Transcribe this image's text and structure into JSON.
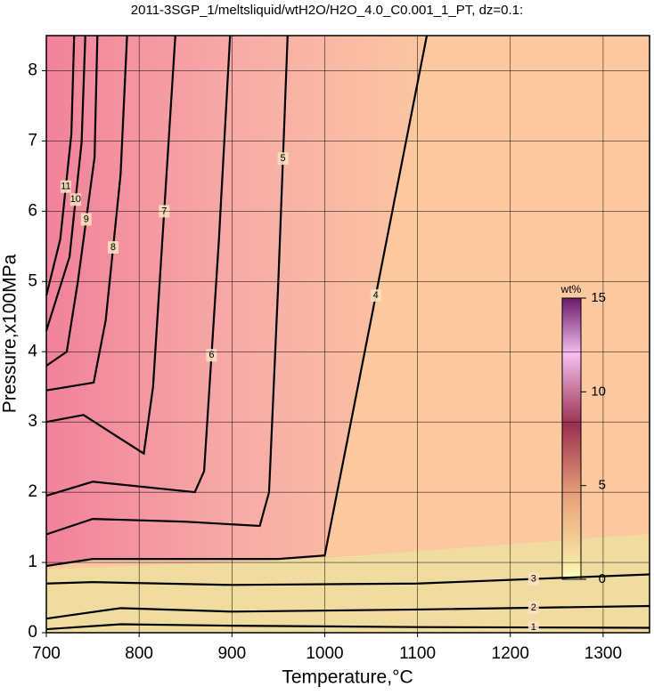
{
  "chart_data": {
    "type": "contour",
    "title": "2011-3SGP_1/meltsliquid/wtH2O/H2O_4.0_C0.001_1_PT, dz=0.1:",
    "x_label": "Temperature,°C",
    "y_label": "Pressure,x100MPa",
    "xlim": [
      700,
      1350
    ],
    "xticks": [
      700,
      800,
      900,
      1000,
      1100,
      1200,
      1300
    ],
    "ylim": [
      0,
      8.5
    ],
    "yticks": [
      0,
      1,
      2,
      3,
      4,
      5,
      6,
      7,
      8
    ],
    "grid": true,
    "colorbar": {
      "label": "wt%",
      "lim": [
        0,
        15
      ],
      "ticks": [
        0,
        5,
        10,
        15
      ]
    },
    "contours": [
      {
        "level": 1,
        "x": [
          700,
          780,
          900,
          1100,
          1350
        ],
        "y": [
          0.05,
          0.12,
          0.1,
          0.08,
          0.07
        ]
      },
      {
        "level": 2,
        "x": [
          700,
          780,
          900,
          1100,
          1350
        ],
        "y": [
          0.2,
          0.35,
          0.3,
          0.33,
          0.38
        ]
      },
      {
        "level": 3,
        "x": [
          700,
          750,
          900,
          1100,
          1350
        ],
        "y": [
          0.7,
          0.72,
          0.68,
          0.7,
          0.83
        ]
      },
      {
        "level": 4,
        "x": [
          700,
          750,
          850,
          950,
          1000,
          1110
        ],
        "y": [
          0.95,
          1.05,
          1.05,
          1.05,
          1.1,
          8.5
        ]
      },
      {
        "level": 5,
        "x": [
          700,
          750,
          850,
          930,
          940,
          950,
          960
        ],
        "y": [
          1.4,
          1.62,
          1.58,
          1.52,
          2,
          5,
          8.5
        ]
      },
      {
        "level": 6,
        "x": [
          700,
          750,
          860,
          870,
          886,
          898
        ],
        "y": [
          1.95,
          2.15,
          2.0,
          2.3,
          5.6,
          8.5
        ]
      },
      {
        "level": 7,
        "x": [
          700,
          740,
          805,
          815,
          839
        ],
        "y": [
          3.0,
          3.1,
          2.55,
          3.5,
          8.5
        ]
      },
      {
        "level": 8,
        "x": [
          700,
          751,
          764,
          780,
          787
        ],
        "y": [
          3.45,
          3.56,
          4.45,
          6.52,
          8.5
        ]
      },
      {
        "level": 9,
        "x": [
          700,
          722,
          734,
          752,
          755
        ],
        "y": [
          3.8,
          4.0,
          5.0,
          6.77,
          8.5
        ]
      },
      {
        "level": 10,
        "x": [
          700,
          725,
          738,
          742
        ],
        "y": [
          4.3,
          5.35,
          6.98,
          8.5
        ]
      },
      {
        "level": 11,
        "x": [
          700,
          715,
          727,
          730
        ],
        "y": [
          4.8,
          5.6,
          7.1,
          8.5
        ]
      }
    ]
  }
}
